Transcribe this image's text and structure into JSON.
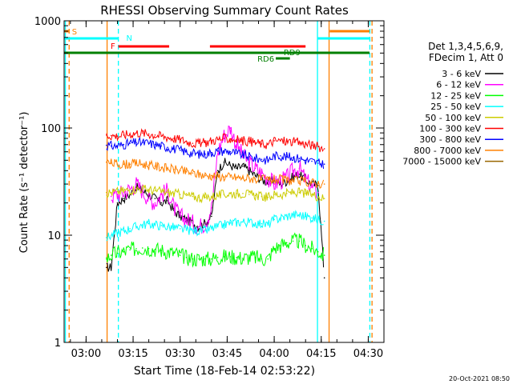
{
  "chart_data": {
    "type": "line",
    "title": "RHESSI Observing Summary Count Rates",
    "xlabel": "Start Time (18-Feb-14 02:53:22)",
    "ylabel": "Count Rate (s⁻¹ detector⁻¹)",
    "yscale": "log",
    "xlim_minutes": [
      -7,
      95
    ],
    "ylim": [
      1,
      1000
    ],
    "x_ticks": [
      {
        "m": 0,
        "label": "03:00"
      },
      {
        "m": 15,
        "label": "03:15"
      },
      {
        "m": 30,
        "label": "03:30"
      },
      {
        "m": 45,
        "label": "03:45"
      },
      {
        "m": 60,
        "label": "04:00"
      },
      {
        "m": 75,
        "label": "04:15"
      },
      {
        "m": 90,
        "label": "04:30"
      }
    ],
    "y_ticks": [
      {
        "v": 1,
        "label": "1"
      },
      {
        "v": 10,
        "label": "10"
      },
      {
        "v": 100,
        "label": "100"
      },
      {
        "v": 1000,
        "label": "1000"
      }
    ],
    "legend": {
      "header": [
        "Det 1,3,4,5,6,9,",
        "FDecim 1, Att 0"
      ],
      "position": "right"
    },
    "series": [
      {
        "name": "3 - 6 keV",
        "color": "#000000",
        "x": [
          6.5,
          8,
          10,
          12,
          14,
          16,
          18,
          20,
          22,
          24,
          26,
          28,
          30,
          32,
          34,
          36,
          38,
          40,
          42,
          44,
          46,
          48,
          50,
          52,
          54,
          56,
          58,
          60,
          62,
          64,
          66,
          68,
          70,
          72,
          74,
          76
        ],
        "values": [
          5,
          5,
          20,
          22,
          24,
          28,
          26,
          24,
          22,
          20,
          21,
          17,
          15,
          14,
          13,
          12,
          13,
          15,
          40,
          48,
          45,
          42,
          44,
          40,
          36,
          33,
          31,
          33,
          30,
          32,
          35,
          37,
          33,
          30,
          29,
          4
        ]
      },
      {
        "name": "6 - 12 keV",
        "color": "#ff00ff",
        "x": [
          8,
          10,
          12,
          14,
          16,
          18,
          20,
          22,
          24,
          26,
          28,
          30,
          32,
          34,
          36,
          38,
          40,
          42,
          44,
          46,
          48,
          50,
          52,
          54,
          56,
          58,
          60,
          62,
          64,
          66,
          68,
          70,
          72,
          74
        ],
        "values": [
          23,
          24,
          25,
          27,
          30,
          26,
          22,
          20,
          24,
          26,
          18,
          15,
          14,
          13,
          12,
          13,
          18,
          60,
          85,
          100,
          70,
          55,
          48,
          42,
          38,
          34,
          30,
          32,
          34,
          40,
          42,
          33,
          28,
          25
        ]
      },
      {
        "name": "12 - 25 keV",
        "color": "#00ff00",
        "x": [
          6.5,
          8,
          10,
          12,
          14,
          16,
          18,
          20,
          22,
          24,
          26,
          28,
          30,
          32,
          34,
          36,
          38,
          40,
          42,
          44,
          46,
          48,
          50,
          52,
          54,
          56,
          58,
          60,
          62,
          64,
          66,
          68,
          70,
          72,
          74,
          76
        ],
        "values": [
          6,
          6.5,
          6.8,
          7,
          7.3,
          7.5,
          7.6,
          7.5,
          7.4,
          7.2,
          7,
          6.8,
          6.5,
          6.2,
          6,
          6,
          6,
          6,
          6.2,
          6.3,
          6.3,
          6.2,
          6.1,
          6.2,
          6.2,
          6,
          6,
          7.5,
          8,
          8.5,
          8.8,
          8.8,
          8,
          7.5,
          7,
          6.5
        ]
      },
      {
        "name": "25 - 50 keV",
        "color": "#00ffff",
        "x": [
          6.5,
          8,
          10,
          12,
          14,
          16,
          18,
          20,
          22,
          24,
          26,
          28,
          30,
          32,
          34,
          36,
          38,
          40,
          42,
          44,
          46,
          48,
          50,
          52,
          54,
          56,
          58,
          60,
          62,
          64,
          66,
          68,
          70,
          72,
          74,
          76
        ],
        "values": [
          9.5,
          10,
          10.5,
          11,
          11.5,
          12,
          12.5,
          12.8,
          12.5,
          12.3,
          12,
          11.8,
          11.5,
          11.2,
          11,
          11,
          11,
          11.5,
          12,
          12.5,
          13,
          13.2,
          13.3,
          13.2,
          13,
          12.8,
          12.5,
          14,
          14.5,
          15,
          15.5,
          15.5,
          15,
          14.5,
          14,
          13.5
        ]
      },
      {
        "name": "50 - 100 keV",
        "color": "#cccc00",
        "x": [
          6.5,
          8,
          10,
          12,
          14,
          16,
          18,
          20,
          22,
          24,
          26,
          28,
          30,
          32,
          34,
          36,
          38,
          40,
          42,
          44,
          46,
          48,
          50,
          52,
          54,
          56,
          58,
          60,
          62,
          64,
          66,
          68,
          70,
          72,
          74,
          76
        ],
        "values": [
          25,
          25,
          25.5,
          26,
          26.5,
          27,
          27,
          26.5,
          26,
          25.5,
          25,
          24.5,
          24,
          23.5,
          23,
          22.5,
          22.5,
          23,
          23.5,
          24,
          24.5,
          24.5,
          24.5,
          24,
          23.5,
          23,
          22.5,
          24,
          24,
          24.5,
          25,
          25,
          24.5,
          24,
          23,
          22
        ]
      },
      {
        "name": "100 - 300 keV",
        "color": "#ff0000",
        "x": [
          6.5,
          8,
          10,
          12,
          14,
          16,
          18,
          20,
          22,
          24,
          26,
          28,
          30,
          32,
          34,
          36,
          38,
          40,
          42,
          44,
          46,
          48,
          50,
          52,
          54,
          56,
          58,
          60,
          62,
          64,
          66,
          68,
          70,
          72,
          74,
          76
        ],
        "values": [
          86,
          85,
          84,
          86,
          88,
          90,
          90,
          88,
          86,
          84,
          82,
          80,
          78,
          75,
          72,
          72,
          73,
          76,
          78,
          80,
          79,
          78,
          76,
          75,
          73,
          71,
          70,
          76,
          76,
          75,
          74,
          73,
          71,
          69,
          67,
          64
        ]
      },
      {
        "name": "300 - 800 keV",
        "color": "#0000ff",
        "x": [
          6.5,
          8,
          10,
          12,
          14,
          16,
          18,
          20,
          22,
          24,
          26,
          28,
          30,
          32,
          34,
          36,
          38,
          40,
          42,
          44,
          46,
          48,
          50,
          52,
          54,
          56,
          58,
          60,
          62,
          64,
          66,
          68,
          70,
          72,
          74,
          76
        ],
        "values": [
          69,
          68,
          68,
          70,
          72,
          73,
          73,
          72,
          70,
          68,
          66,
          64,
          62,
          60,
          58,
          57,
          57,
          59,
          61,
          61,
          60,
          58,
          56,
          54,
          52,
          51,
          50,
          55,
          55,
          54,
          53,
          52,
          50,
          49,
          47,
          46
        ]
      },
      {
        "name": "800 - 7000 keV",
        "color": "#ff8000",
        "x": [
          6.5,
          8,
          10,
          12,
          14,
          16,
          18,
          20,
          22,
          24,
          26,
          28,
          30,
          32,
          34,
          36,
          38,
          40,
          42,
          44,
          46,
          48,
          50,
          52,
          54,
          56,
          58,
          60,
          62,
          64,
          66,
          68,
          70,
          72,
          74,
          76
        ],
        "values": [
          48,
          47,
          46,
          46,
          46,
          47,
          46,
          45,
          44,
          43,
          42,
          41,
          40,
          39,
          38,
          37,
          36,
          36,
          35.5,
          35,
          35,
          34.5,
          34,
          34,
          33.5,
          33,
          33,
          33,
          33,
          32.5,
          32,
          32,
          31.5,
          31,
          30.5,
          30
        ]
      },
      {
        "name": "7000 - 15000 keV",
        "color": "#996600",
        "x": [],
        "values": []
      }
    ],
    "vertical_lines": [
      {
        "m": -6.6,
        "color": "#00ffff",
        "style": "solid"
      },
      {
        "m": -5.4,
        "color": "#ff8000",
        "style": "dashed"
      },
      {
        "m": 6.7,
        "color": "#ff8000",
        "style": "solid"
      },
      {
        "m": 10.3,
        "color": "#00ffff",
        "style": "dashed"
      },
      {
        "m": 73.8,
        "color": "#00ffff",
        "style": "solid"
      },
      {
        "m": 77.5,
        "color": "#ff8000",
        "style": "solid"
      },
      {
        "m": 90.5,
        "color": "#00ffff",
        "style": "dashed"
      },
      {
        "m": 91.2,
        "color": "#ff8000",
        "style": "dashed"
      }
    ],
    "flag_bars": [
      {
        "label": "S",
        "color": "#ff8000",
        "y": 39,
        "segments": [
          [
            -7,
            -5.4
          ],
          [
            77.7,
            95
          ]
        ]
      },
      {
        "label": "N",
        "color": "#00ffff",
        "y": 48,
        "segments": [
          [
            -7,
            10.3
          ],
          [
            73.8,
            95
          ]
        ]
      },
      {
        "label": "F",
        "color": "#ff0000",
        "y": 58,
        "segments": [
          [
            10.3,
            26.5
          ],
          [
            39.5,
            70
          ]
        ]
      },
      {
        "label": "",
        "color": "#008000",
        "y": 66,
        "segments": [
          [
            -7,
            95
          ]
        ]
      },
      {
        "label": "RD6",
        "color": "#008000",
        "y": 73,
        "segments": [
          [
            60.5,
            65
          ]
        ]
      },
      {
        "label": "RD9",
        "color": "#008000",
        "y": 66,
        "segments": []
      }
    ]
  },
  "footer": {
    "timestamp": "20-Oct-2021 08:50"
  }
}
